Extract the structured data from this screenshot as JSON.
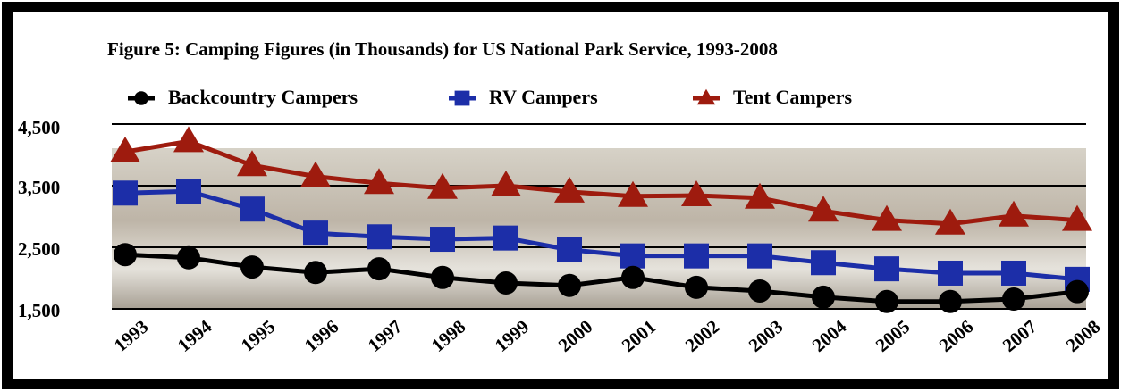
{
  "chart_data": {
    "type": "line",
    "title": "Figure 5: Camping Figures (in Thousands) for US National Park Service, 1993-2008",
    "categories": [
      "1993",
      "1994",
      "1995",
      "1996",
      "1997",
      "1998",
      "1999",
      "2000",
      "2001",
      "2002",
      "2003",
      "2004",
      "2005",
      "2006",
      "2007",
      "2008"
    ],
    "series": [
      {
        "name": "Backcountry Campers",
        "color": "#000000",
        "marker": "circle",
        "values": [
          2380,
          2330,
          2180,
          2090,
          2150,
          2010,
          1920,
          1880,
          2010,
          1850,
          1790,
          1690,
          1620,
          1620,
          1660,
          1780
        ]
      },
      {
        "name": "RV Campers",
        "color": "#1c2ea8",
        "marker": "square",
        "values": [
          3380,
          3410,
          3120,
          2730,
          2670,
          2630,
          2650,
          2460,
          2360,
          2360,
          2360,
          2250,
          2150,
          2080,
          2080,
          1980
        ]
      },
      {
        "name": "Tent Campers",
        "color": "#9e1b0e",
        "marker": "triangle",
        "values": [
          4050,
          4220,
          3830,
          3650,
          3540,
          3460,
          3500,
          3400,
          3330,
          3340,
          3300,
          3090,
          2940,
          2880,
          3010,
          2940
        ]
      }
    ],
    "ylim": [
      1500,
      4500
    ],
    "yticks": [
      {
        "value": 1500,
        "label": "1,500"
      },
      {
        "value": 2500,
        "label": "2,500"
      },
      {
        "value": 3500,
        "label": "3,500"
      },
      {
        "value": 4500,
        "label": "4,500"
      }
    ],
    "grid": true,
    "legend": "top"
  }
}
